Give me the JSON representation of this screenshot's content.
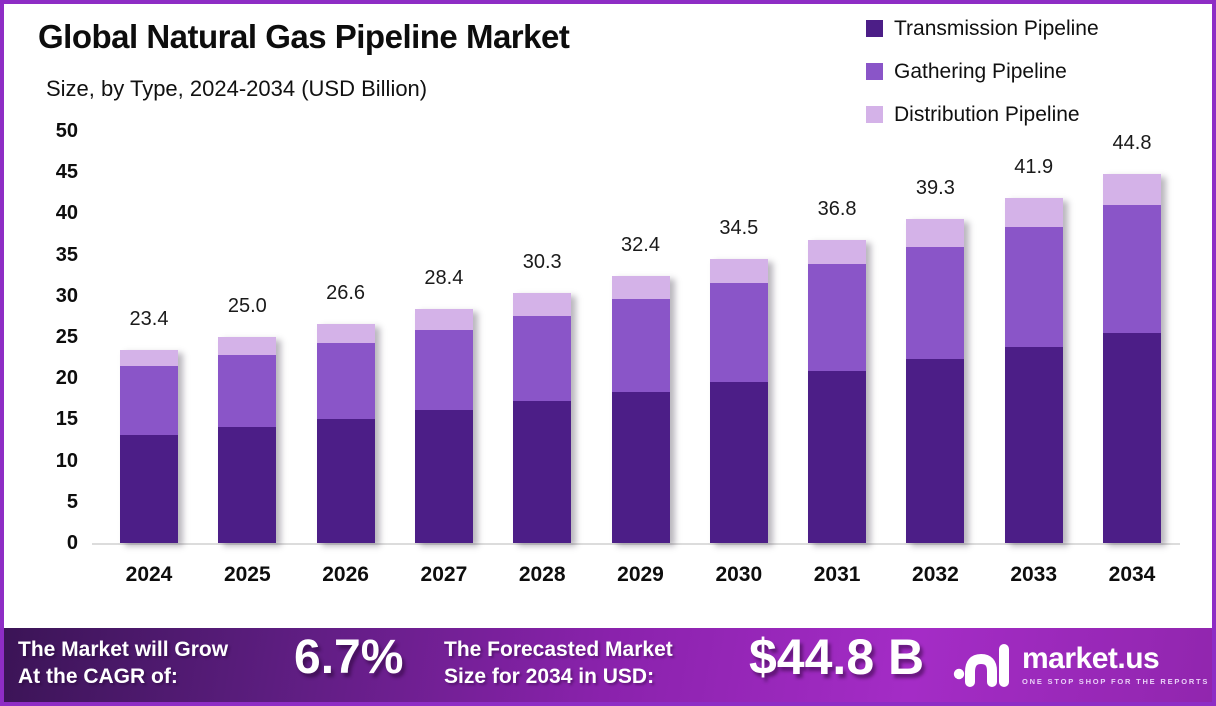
{
  "header": {
    "title": "Global Natural Gas Pipeline Market",
    "subtitle": "Size, by Type, 2024-2034 (USD Billion)"
  },
  "legend": [
    {
      "label": "Transmission Pipeline",
      "color": "#4C1E87"
    },
    {
      "label": "Gathering Pipeline",
      "color": "#8A55C8"
    },
    {
      "label": "Distribution Pipeline",
      "color": "#D4B2E8"
    }
  ],
  "chart_data": {
    "type": "bar",
    "stacked": true,
    "title": "Global Natural Gas Pipeline Market Size, by Type, 2024-2034 (USD Billion)",
    "categories": [
      "2024",
      "2025",
      "2026",
      "2027",
      "2028",
      "2029",
      "2030",
      "2031",
      "2032",
      "2033",
      "2034"
    ],
    "series": [
      {
        "name": "Transmission Pipeline",
        "color": "#4C1E87",
        "values": [
          13.1,
          14.1,
          15.0,
          16.1,
          17.2,
          18.3,
          19.5,
          20.9,
          22.3,
          23.8,
          25.5
        ]
      },
      {
        "name": "Gathering Pipeline",
        "color": "#8A55C8",
        "values": [
          8.4,
          8.7,
          9.3,
          9.8,
          10.4,
          11.3,
          12.0,
          12.9,
          13.6,
          14.5,
          15.5
        ]
      },
      {
        "name": "Distribution Pipeline",
        "color": "#D4B2E8",
        "values": [
          1.9,
          2.2,
          2.3,
          2.5,
          2.7,
          2.8,
          3.0,
          3.0,
          3.4,
          3.6,
          3.8
        ]
      }
    ],
    "totals": [
      23.4,
      25.0,
      26.6,
      28.4,
      30.3,
      32.4,
      34.5,
      36.8,
      39.3,
      41.9,
      44.8
    ],
    "xlabel": "",
    "ylabel": "",
    "ylim": [
      0,
      50
    ],
    "ytick_step": 5,
    "grid": false,
    "legend_position": "top-right"
  },
  "footer": {
    "cagr_label_line1": "The Market will Grow",
    "cagr_label_line2": "At the CAGR of:",
    "cagr_value": "6.7%",
    "forecast_label_line1": "The Forecasted Market",
    "forecast_label_line2": "Size for 2034 in USD:",
    "forecast_value": "$44.8 B",
    "brand_name": "market.us",
    "brand_tagline": "ONE STOP SHOP FOR THE REPORTS"
  },
  "colors": {
    "frame_border": "#8E2DC5",
    "baseline": "#DCDCDC",
    "footer_gradient_start": "#3B1456",
    "footer_gradient_end": "#9126AE"
  }
}
